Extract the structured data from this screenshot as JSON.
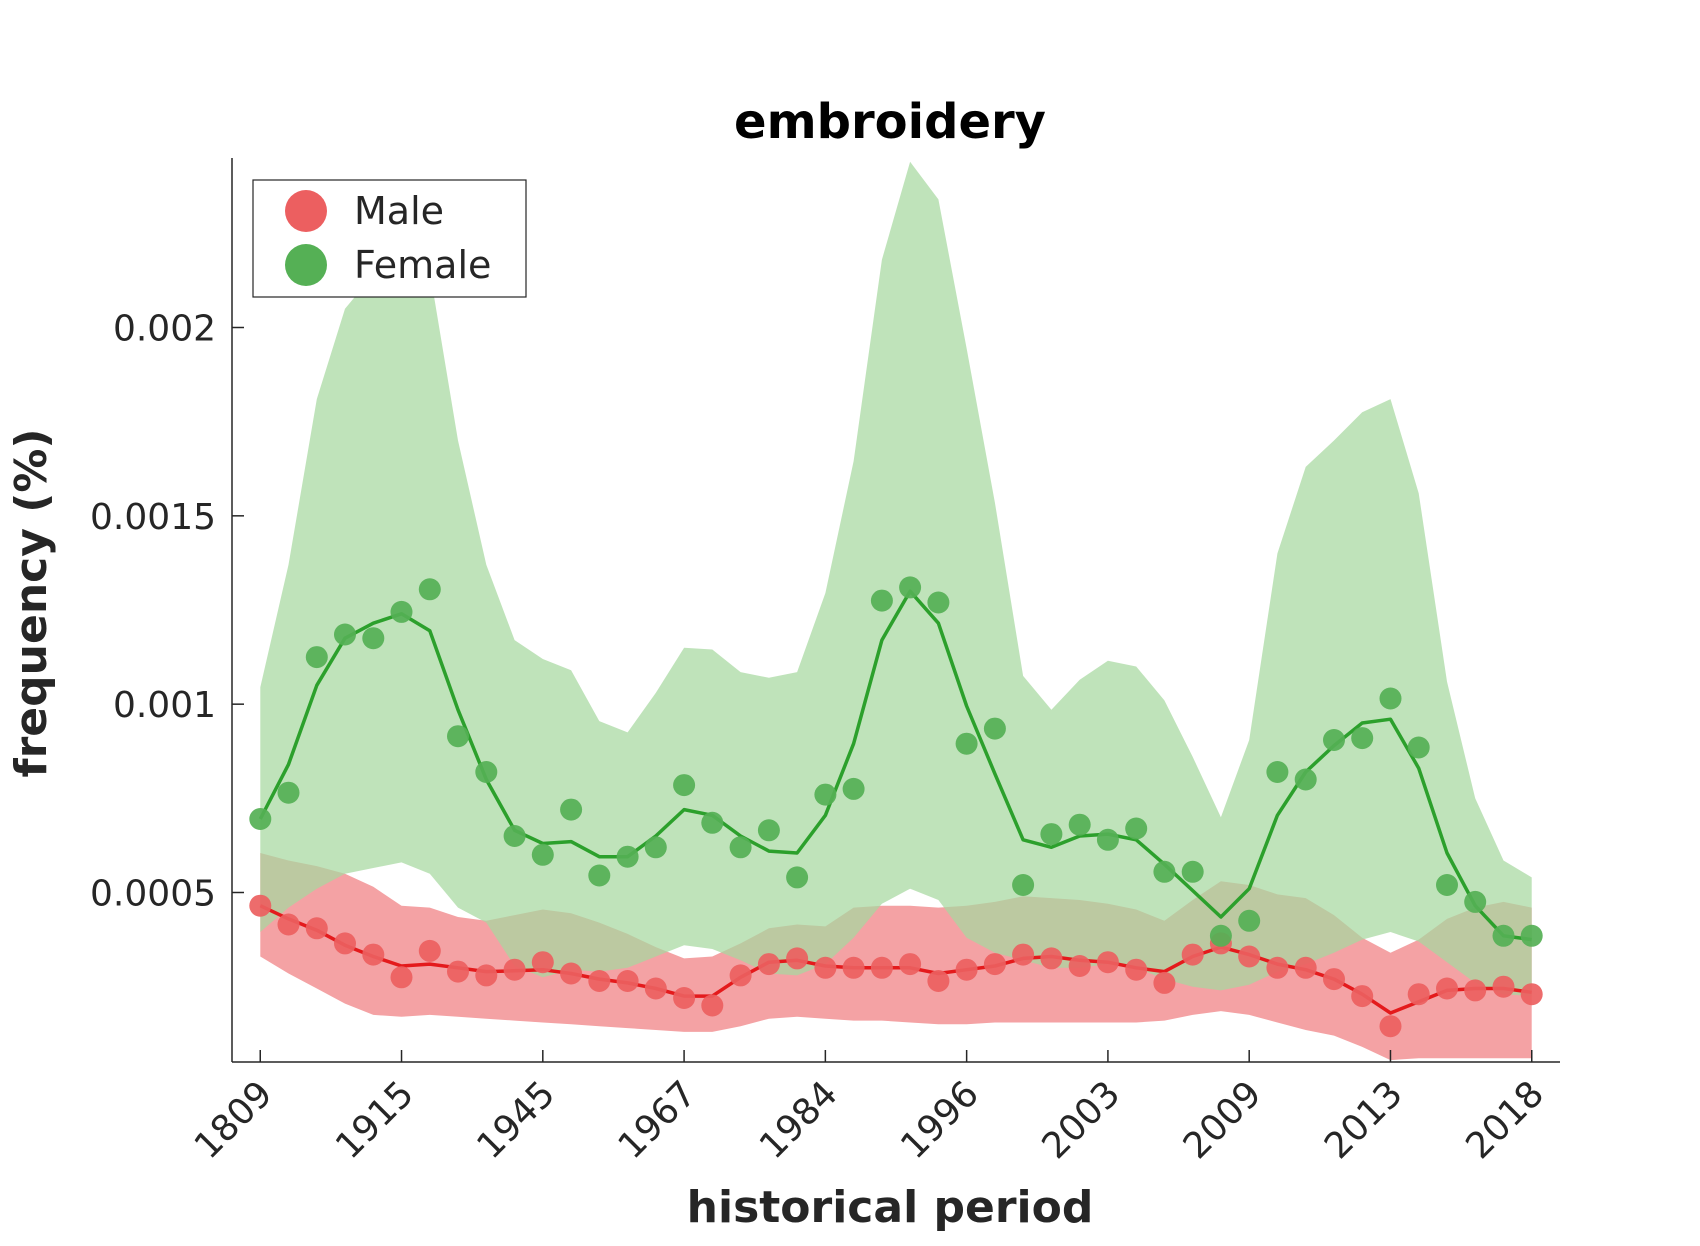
{
  "chart_data": {
    "type": "line",
    "title": "embroidery",
    "xlabel": "historical period",
    "ylabel": "frequency (%)",
    "x_tick_labels": [
      "1809",
      "1915",
      "1945",
      "1967",
      "1984",
      "1996",
      "2003",
      "2009",
      "2013",
      "2018"
    ],
    "x_tick_positions": [
      1,
      6,
      11,
      16,
      21,
      26,
      31,
      36,
      41,
      46
    ],
    "xlim": [
      0,
      47
    ],
    "ylim": [
      5e-05,
      0.00245
    ],
    "y_ticks": [
      0.0005,
      0.001,
      0.0015,
      0.002
    ],
    "y_tick_labels": [
      "0.0005",
      "0.001",
      "0.0015",
      "0.002"
    ],
    "legend": {
      "position": "top-left"
    },
    "grid": false,
    "series": [
      {
        "name": "Male",
        "color": "#e41a1c",
        "marker_color": "#ec5f60",
        "band_color": "#f4a2a4",
        "points": [
          0.000465,
          0.000415,
          0.000405,
          0.000365,
          0.000335,
          0.000275,
          0.000345,
          0.00029,
          0.00028,
          0.000295,
          0.000315,
          0.000285,
          0.000265,
          0.000265,
          0.000245,
          0.00022,
          0.0002,
          0.00028,
          0.00031,
          0.000325,
          0.0003,
          0.0003,
          0.0003,
          0.00031,
          0.000265,
          0.000295,
          0.00031,
          0.000335,
          0.000325,
          0.000305,
          0.000315,
          0.000295,
          0.00026,
          0.000335,
          0.000365,
          0.00033,
          0.0003,
          0.0003,
          0.00027,
          0.000225,
          0.000145,
          0.00023,
          0.000245,
          0.00024,
          0.00025,
          0.00023
        ],
        "line": [
          0.000465,
          0.00043,
          0.0004,
          0.00036,
          0.00033,
          0.000305,
          0.00031,
          0.0003,
          0.00029,
          0.000292,
          0.000295,
          0.000285,
          0.00027,
          0.00026,
          0.000245,
          0.000225,
          0.000225,
          0.000275,
          0.000315,
          0.00032,
          0.000305,
          0.0003,
          0.0003,
          0.0003,
          0.000285,
          0.000295,
          0.000305,
          0.000325,
          0.00033,
          0.00032,
          0.000315,
          0.0003,
          0.00029,
          0.00033,
          0.000355,
          0.000335,
          0.00031,
          0.000295,
          0.00027,
          0.00023,
          0.00018,
          0.00021,
          0.00024,
          0.000245,
          0.000245,
          0.000235
        ],
        "band_upper": [
          0.000605,
          0.000585,
          0.00057,
          0.00055,
          0.000515,
          0.000465,
          0.00046,
          0.000435,
          0.000425,
          0.00044,
          0.000455,
          0.000445,
          0.00042,
          0.00039,
          0.000355,
          0.000325,
          0.00033,
          0.000365,
          0.000405,
          0.000415,
          0.00041,
          0.00046,
          0.000465,
          0.000465,
          0.00046,
          0.000465,
          0.000475,
          0.00049,
          0.000485,
          0.00048,
          0.00047,
          0.000455,
          0.000425,
          0.00048,
          0.00053,
          0.00052,
          0.000495,
          0.000485,
          0.00044,
          0.00038,
          0.00034,
          0.000375,
          0.00043,
          0.00046,
          0.000475,
          0.00046
        ],
        "band_lower": [
          0.00033,
          0.000285,
          0.000245,
          0.000205,
          0.000175,
          0.00017,
          0.000175,
          0.00017,
          0.000165,
          0.00016,
          0.000155,
          0.00015,
          0.000145,
          0.00014,
          0.000135,
          0.00013,
          0.00013,
          0.000145,
          0.000165,
          0.00017,
          0.000165,
          0.00016,
          0.00016,
          0.000155,
          0.00015,
          0.00015,
          0.000155,
          0.000155,
          0.000155,
          0.000155,
          0.000155,
          0.000155,
          0.00016,
          0.000175,
          0.000185,
          0.000175,
          0.000155,
          0.000135,
          0.00012,
          9e-05,
          5.5e-05,
          6e-05,
          6e-05,
          6e-05,
          6e-05,
          6e-05
        ]
      },
      {
        "name": "Female",
        "color": "#2ca02c",
        "marker_color": "#55b055",
        "band_color": "#a6d89f",
        "points": [
          0.000695,
          0.000765,
          0.001125,
          0.001185,
          0.001175,
          0.001245,
          0.001305,
          0.000915,
          0.00082,
          0.00065,
          0.0006,
          0.00072,
          0.000545,
          0.000595,
          0.00062,
          0.000785,
          0.000685,
          0.00062,
          0.000665,
          0.00054,
          0.00076,
          0.000775,
          0.001275,
          0.00131,
          0.00127,
          0.000895,
          0.000935,
          0.00052,
          0.000655,
          0.00068,
          0.00064,
          0.00067,
          0.000555,
          0.000555,
          0.000385,
          0.000425,
          0.00082,
          0.0008,
          0.000905,
          0.00091,
          0.001015,
          0.000885,
          0.00052,
          0.000475,
          0.000385,
          0.000385
        ],
        "line": [
          0.000695,
          0.00084,
          0.00105,
          0.001175,
          0.001215,
          0.00124,
          0.001195,
          0.000985,
          0.0008,
          0.000665,
          0.00063,
          0.000635,
          0.000595,
          0.000595,
          0.00065,
          0.00072,
          0.000705,
          0.00065,
          0.00061,
          0.000605,
          0.000705,
          0.000895,
          0.00117,
          0.0013,
          0.001215,
          0.000995,
          0.000815,
          0.00064,
          0.00062,
          0.00065,
          0.000655,
          0.00064,
          0.000575,
          0.000505,
          0.000435,
          0.00051,
          0.000705,
          0.00082,
          0.00089,
          0.00095,
          0.00096,
          0.00083,
          0.000605,
          0.000465,
          0.000385,
          0.000375
        ],
        "band_upper": [
          0.001045,
          0.00137,
          0.00181,
          0.00205,
          0.00214,
          0.00219,
          0.00215,
          0.0017,
          0.00137,
          0.00117,
          0.00112,
          0.00109,
          0.000955,
          0.000925,
          0.00103,
          0.00115,
          0.001145,
          0.001085,
          0.00107,
          0.001085,
          0.001295,
          0.001645,
          0.00218,
          0.00244,
          0.00234,
          0.001945,
          0.001535,
          0.001075,
          0.000985,
          0.001065,
          0.001115,
          0.0011,
          0.00101,
          0.00086,
          0.0007,
          0.000905,
          0.0014,
          0.00163,
          0.0017,
          0.001775,
          0.00181,
          0.00156,
          0.00106,
          0.00075,
          0.000585,
          0.00054
        ],
        "band_lower": [
          0.000395,
          0.00046,
          0.00051,
          0.00055,
          0.000565,
          0.00058,
          0.00055,
          0.00046,
          0.00042,
          0.000305,
          0.000275,
          0.000295,
          0.00029,
          0.0003,
          0.00033,
          0.00036,
          0.00035,
          0.00032,
          0.000285,
          0.00028,
          0.00031,
          0.00038,
          0.00047,
          0.00051,
          0.00048,
          0.00038,
          0.00034,
          0.00032,
          0.0003,
          0.0003,
          0.00031,
          0.0003,
          0.00027,
          0.00025,
          0.00024,
          0.000255,
          0.00029,
          0.00031,
          0.00034,
          0.000375,
          0.000395,
          0.00037,
          0.000315,
          0.00026,
          0.00023,
          0.000225
        ]
      }
    ]
  }
}
